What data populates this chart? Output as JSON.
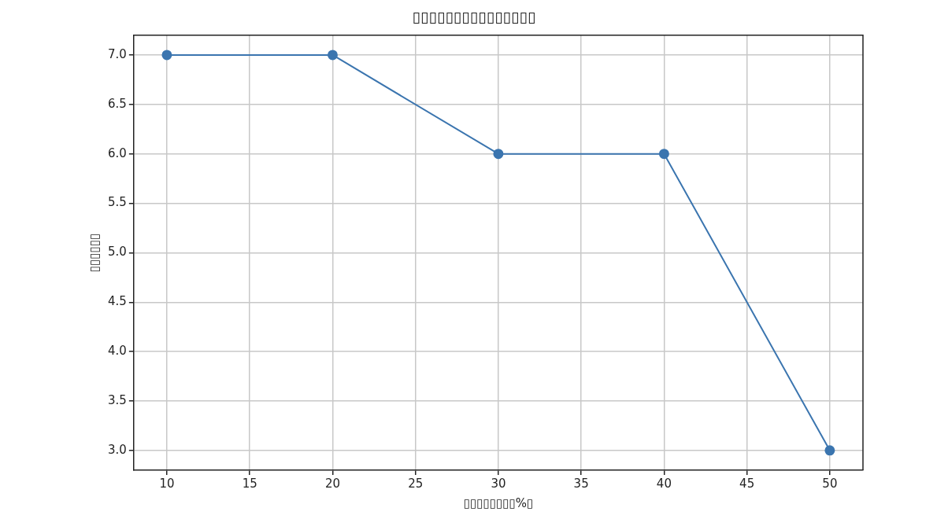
{
  "chart_data": {
    "type": "line",
    "title": "▯▯▯▯▯▯▯▯▯▯▯▯▯▯▯",
    "xlabel": "▯▯▯▯▯▯▯▯%▯",
    "ylabel": "▯▯▯▯▯▯",
    "x": [
      10,
      20,
      30,
      40,
      50
    ],
    "series": [
      {
        "color": "#3b75af",
        "values": [
          7,
          7,
          6,
          6,
          3
        ]
      }
    ],
    "xlim": [
      8,
      52
    ],
    "xticks": [
      10,
      15,
      20,
      25,
      30,
      35,
      40,
      45,
      50
    ],
    "ylim": [
      2.8,
      7.2
    ],
    "yticks": [
      {
        "value": 3,
        "label": "3.0"
      },
      {
        "value": 3.5,
        "label": "3.5"
      },
      {
        "value": 4,
        "label": "4.0"
      },
      {
        "value": 4.5,
        "label": "4.5"
      },
      {
        "value": 5,
        "label": "5.0"
      },
      {
        "value": 5.5,
        "label": "5.5"
      },
      {
        "value": 6,
        "label": "6.0"
      },
      {
        "value": 6.5,
        "label": "6.5"
      },
      {
        "value": 7,
        "label": "7.0"
      }
    ],
    "grid": true,
    "marker": "circle",
    "line_style": "solid"
  }
}
